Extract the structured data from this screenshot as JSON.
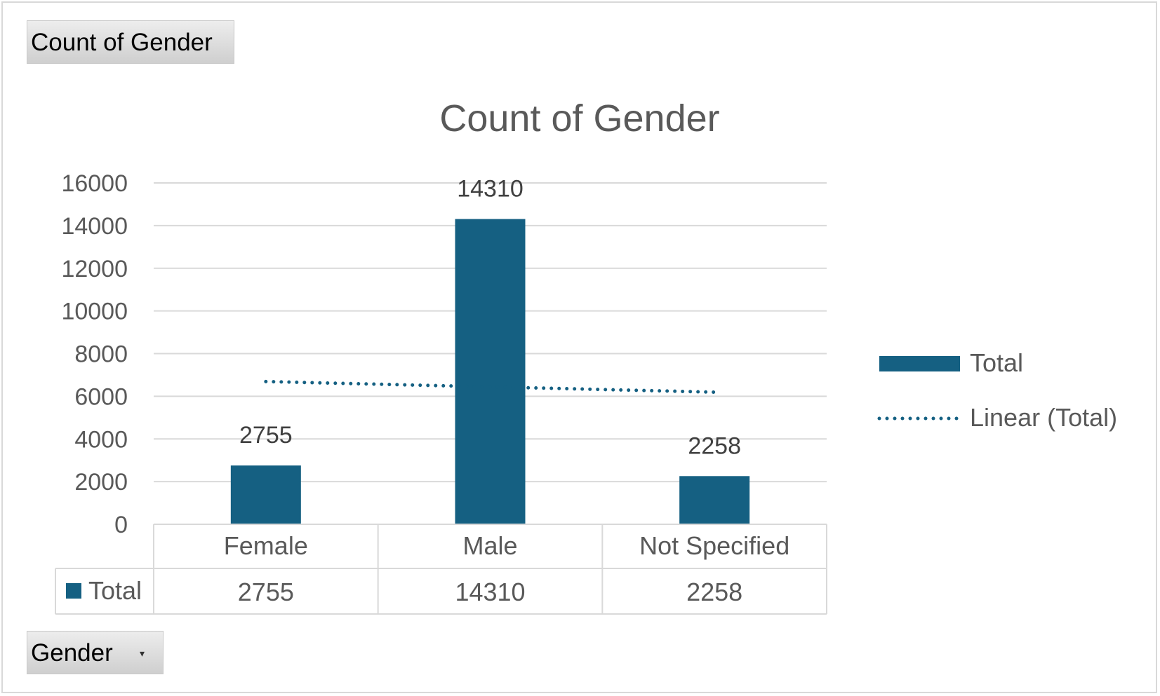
{
  "field_buttons": {
    "value_field": "Count of Gender",
    "axis_field": "Gender",
    "axis_dropdown_icon": "dropdown-arrow-icon"
  },
  "colors": {
    "series": "#156082",
    "grid": "#d9d9d9",
    "text": "#595959"
  },
  "chart_data": {
    "type": "bar",
    "title": "Count of Gender",
    "categories": [
      "Female",
      "Male",
      "Not Specified"
    ],
    "series": [
      {
        "name": "Total",
        "values": [
          2755,
          14310,
          2258
        ]
      }
    ],
    "trendline": {
      "name": "Linear (Total)",
      "type": "linear",
      "style": "dotted"
    },
    "ylim": [
      0,
      16000
    ],
    "yticks": [
      0,
      2000,
      4000,
      6000,
      8000,
      10000,
      12000,
      14000,
      16000
    ],
    "grid": true,
    "data_labels": true,
    "data_table": true,
    "legend_position": "right"
  }
}
